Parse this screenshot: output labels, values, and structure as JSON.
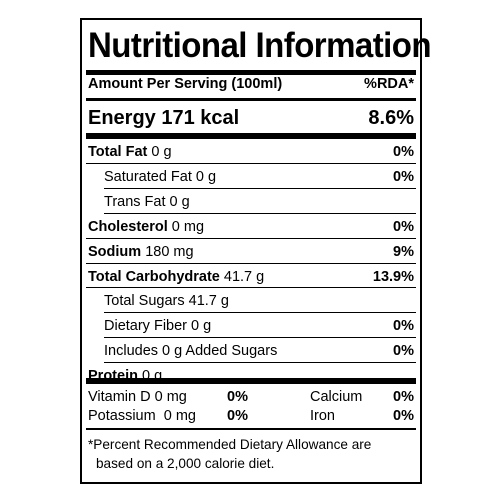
{
  "title": "Nutritional Information",
  "serving": {
    "label": "Amount Per Serving (100ml)",
    "rda_header": "%RDA*"
  },
  "energy": {
    "label": "Energy 171 kcal",
    "rda": "8.6%"
  },
  "rows": [
    {
      "bold": "Total Fat",
      "rest": " 0 g",
      "pct": "0%"
    },
    {
      "bold": "",
      "rest": "Saturated Fat 0 g",
      "pct": "0%"
    },
    {
      "bold": "",
      "rest": "Trans Fat 0 g",
      "pct": ""
    },
    {
      "bold": "Cholesterol",
      "rest": " 0 mg",
      "pct": "0%"
    },
    {
      "bold": "Sodium",
      "rest": " 180 mg",
      "pct": "9%"
    },
    {
      "bold": "Total Carbohydrate",
      "rest": " 41.7 g",
      "pct": "13.9%"
    },
    {
      "bold": "",
      "rest": "Total Sugars 41.7 g",
      "pct": ""
    },
    {
      "bold": "",
      "rest": "Dietary Fiber 0 g",
      "pct": "0%"
    },
    {
      "bold": "",
      "rest": "Includes 0 g Added Sugars",
      "pct": "0%"
    },
    {
      "bold": "Protein",
      "rest": " 0 g",
      "pct": ""
    }
  ],
  "micros": {
    "vitamin_d": {
      "label": "Vitamin D 0 mg",
      "pct": "0%"
    },
    "calcium": {
      "label": "Calcium",
      "pct": "0%"
    },
    "potassium": {
      "label": "Potassium  0 mg",
      "pct": "0%"
    },
    "iron": {
      "label": "Iron",
      "pct": "0%"
    }
  },
  "footnote": {
    "line1": "*Percent Recommended Dietary Allowance are",
    "line2": "based on a 2,000 calorie diet."
  }
}
